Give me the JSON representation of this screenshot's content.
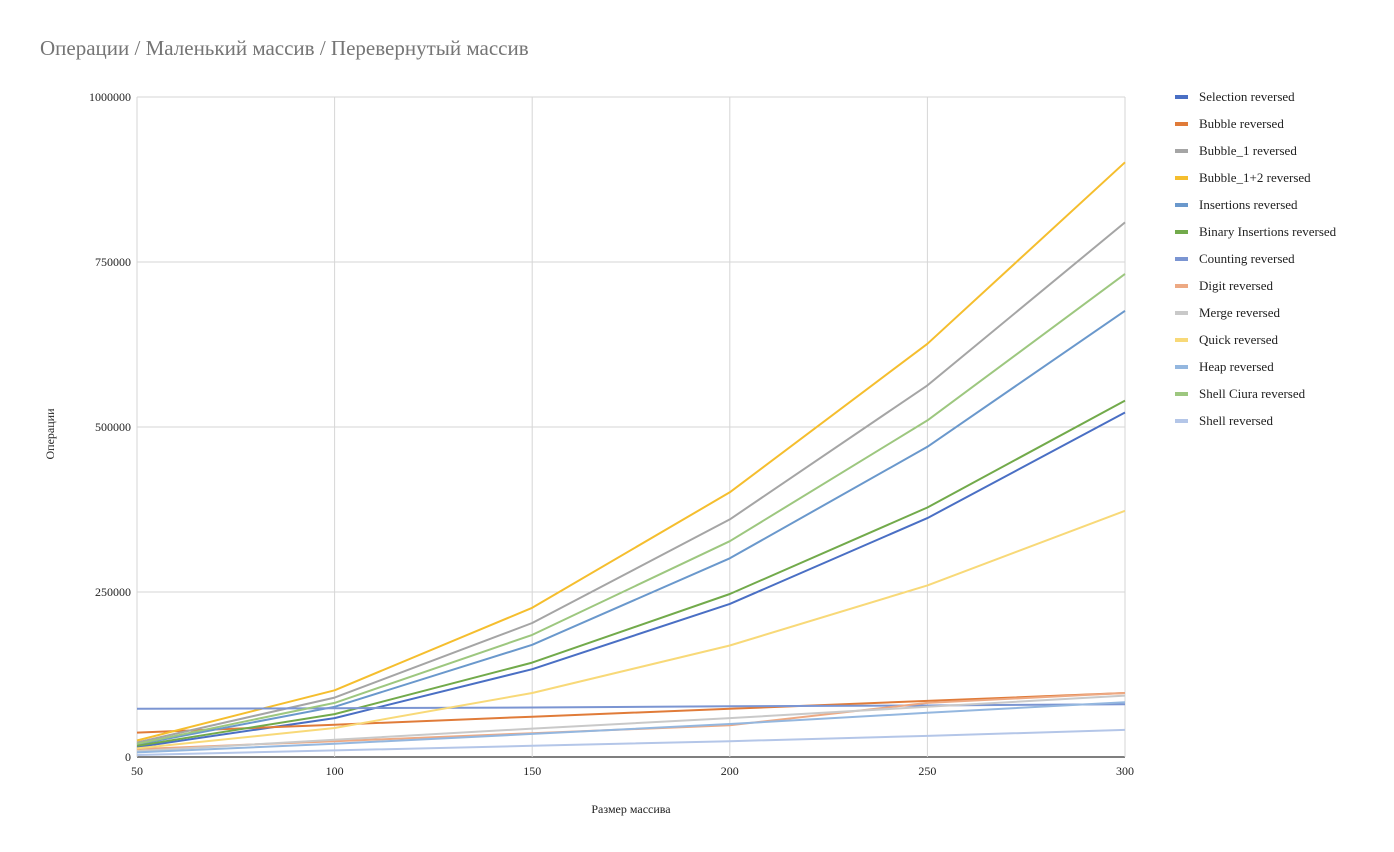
{
  "chart_data": {
    "type": "line",
    "title": "Операции / Маленький массив / Перевернутый массив",
    "xlabel": "Размер массива",
    "ylabel": "Операции",
    "x": [
      50,
      100,
      150,
      200,
      250,
      300
    ],
    "xlim": [
      50,
      300
    ],
    "ylim": [
      0,
      1000000
    ],
    "xticks": [
      "50",
      "100",
      "150",
      "200",
      "250",
      "300"
    ],
    "yticks": [
      "0",
      "250000",
      "500000",
      "750000",
      "1000000"
    ],
    "grid": true,
    "legend_position": "right",
    "series": [
      {
        "name": "Selection reversed",
        "color": "#4A6FC4",
        "values": [
          15000,
          59000,
          133000,
          232000,
          362000,
          522000
        ]
      },
      {
        "name": "Bubble reversed",
        "color": "#E07B39",
        "values": [
          37000,
          49000,
          61000,
          73000,
          85000,
          97000
        ]
      },
      {
        "name": "Bubble_1 reversed",
        "color": "#A5A5A5",
        "values": [
          22000,
          90000,
          203000,
          360000,
          563000,
          810000
        ]
      },
      {
        "name": "Bubble_1+2 reversed",
        "color": "#F5BE2E",
        "values": [
          25000,
          101000,
          226000,
          401000,
          626000,
          901000
        ]
      },
      {
        "name": "Insertions reversed",
        "color": "#6A98CC",
        "values": [
          19000,
          76000,
          170000,
          301000,
          470000,
          676000
        ]
      },
      {
        "name": "Binary Insertions reversed",
        "color": "#72AA4B",
        "values": [
          17000,
          65000,
          143000,
          247000,
          378000,
          540000
        ]
      },
      {
        "name": "Counting reversed",
        "color": "#7B95D2",
        "values": [
          73000,
          74000,
          75000,
          77000,
          78000,
          80000
        ]
      },
      {
        "name": "Digit reversed",
        "color": "#EDA983",
        "values": [
          12000,
          24000,
          36000,
          48000,
          82000,
          97000
        ]
      },
      {
        "name": "Merge reversed",
        "color": "#C9C9C9",
        "values": [
          9000,
          26000,
          43000,
          59000,
          76000,
          93000
        ]
      },
      {
        "name": "Quick reversed",
        "color": "#F8D978",
        "values": [
          13000,
          44000,
          97000,
          169000,
          260000,
          373000
        ]
      },
      {
        "name": "Heap reversed",
        "color": "#94B7DF",
        "values": [
          7000,
          20000,
          35000,
          50000,
          67000,
          83000
        ]
      },
      {
        "name": "Shell Ciura reversed",
        "color": "#9DC77F",
        "values": [
          20000,
          82000,
          185000,
          327000,
          510000,
          732000
        ]
      },
      {
        "name": "Shell reversed",
        "color": "#B4C6E8",
        "values": [
          3000,
          10000,
          17000,
          24000,
          32000,
          41000
        ]
      }
    ]
  }
}
